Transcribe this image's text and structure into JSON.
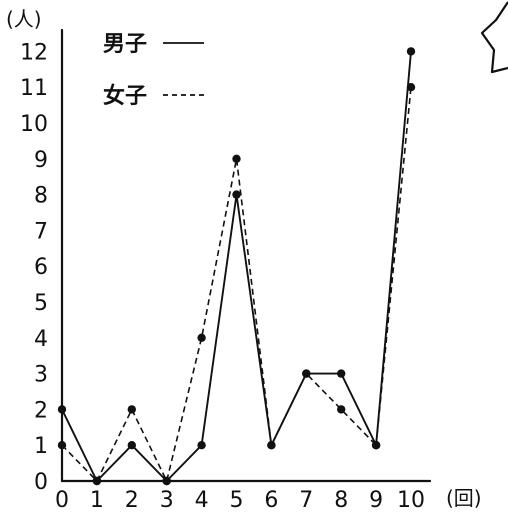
{
  "chart_data": {
    "type": "line",
    "title": "",
    "ylabel": "(人)",
    "xlabel": "(回)",
    "x": [
      0,
      1,
      2,
      3,
      4,
      5,
      6,
      7,
      8,
      9,
      10
    ],
    "ylim": [
      0,
      12
    ],
    "yticks": [
      0,
      1,
      2,
      3,
      4,
      5,
      6,
      7,
      8,
      9,
      10,
      11,
      12
    ],
    "series": [
      {
        "name": "男子",
        "style": "solid",
        "values": [
          2,
          0,
          1,
          0,
          1,
          8,
          1,
          3,
          3,
          1,
          12
        ]
      },
      {
        "name": "女子",
        "style": "dashed",
        "values": [
          1,
          0,
          2,
          0,
          4,
          9,
          1,
          3,
          2,
          1,
          11
        ]
      }
    ],
    "legend": {
      "placement": "top-left"
    },
    "grid": false
  }
}
